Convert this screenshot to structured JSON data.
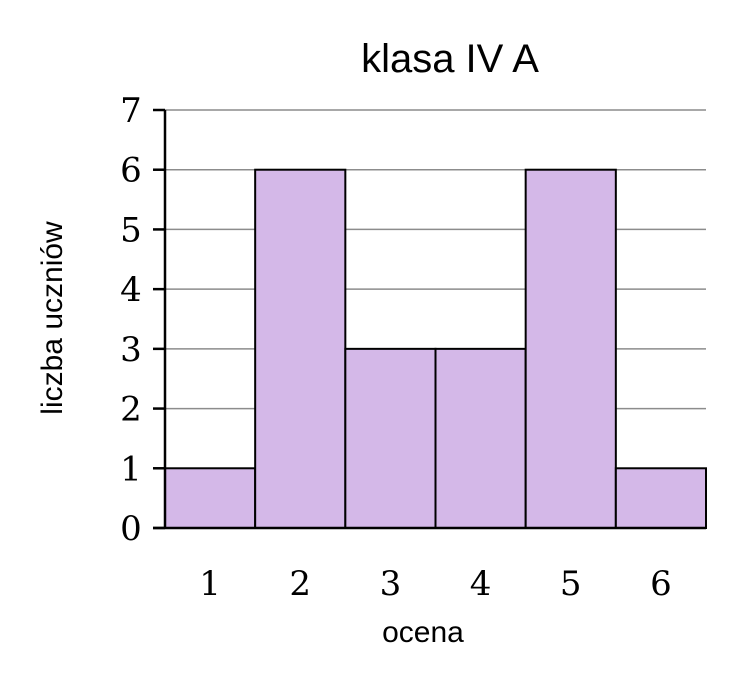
{
  "chart_data": {
    "type": "bar",
    "title": "klasa IV A",
    "xlabel": "ocena",
    "ylabel": "liczba uczniów",
    "categories": [
      "1",
      "2",
      "3",
      "4",
      "5",
      "6"
    ],
    "values": [
      1,
      6,
      3,
      3,
      6,
      1
    ],
    "ylim": [
      0,
      7
    ],
    "yticks": [
      "0",
      "1",
      "2",
      "3",
      "4",
      "5",
      "6",
      "7"
    ],
    "grid": true,
    "bar_color": "#d4b8e8",
    "bar_edge_color": "#000000"
  }
}
